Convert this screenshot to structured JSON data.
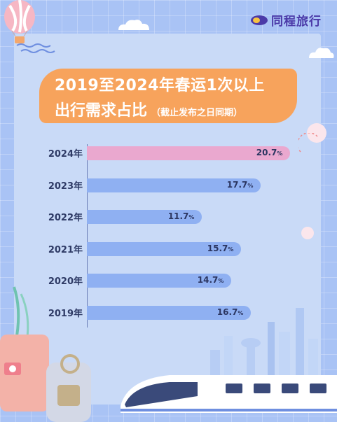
{
  "brand": {
    "name": "同程旅行"
  },
  "title": {
    "line1": "2019至2024年春运1次以上",
    "line2": "出行需求占比",
    "note": "（截止发布之日同期）"
  },
  "colors": {
    "highlight": "#eaa8cf",
    "bar": "#8fb0f2",
    "title_bg": "#f7a35c",
    "brand": "#4b3aa8"
  },
  "chart_data": {
    "type": "bar",
    "orientation": "horizontal",
    "categories": [
      "2024年",
      "2023年",
      "2022年",
      "2021年",
      "2020年",
      "2019年"
    ],
    "values": [
      20.7,
      17.7,
      11.7,
      15.7,
      14.7,
      16.7
    ],
    "value_labels": [
      "20.7",
      "17.7",
      "11.7",
      "15.7",
      "14.7",
      "16.7"
    ],
    "unit": "%",
    "highlight_category": "2024年"
  }
}
